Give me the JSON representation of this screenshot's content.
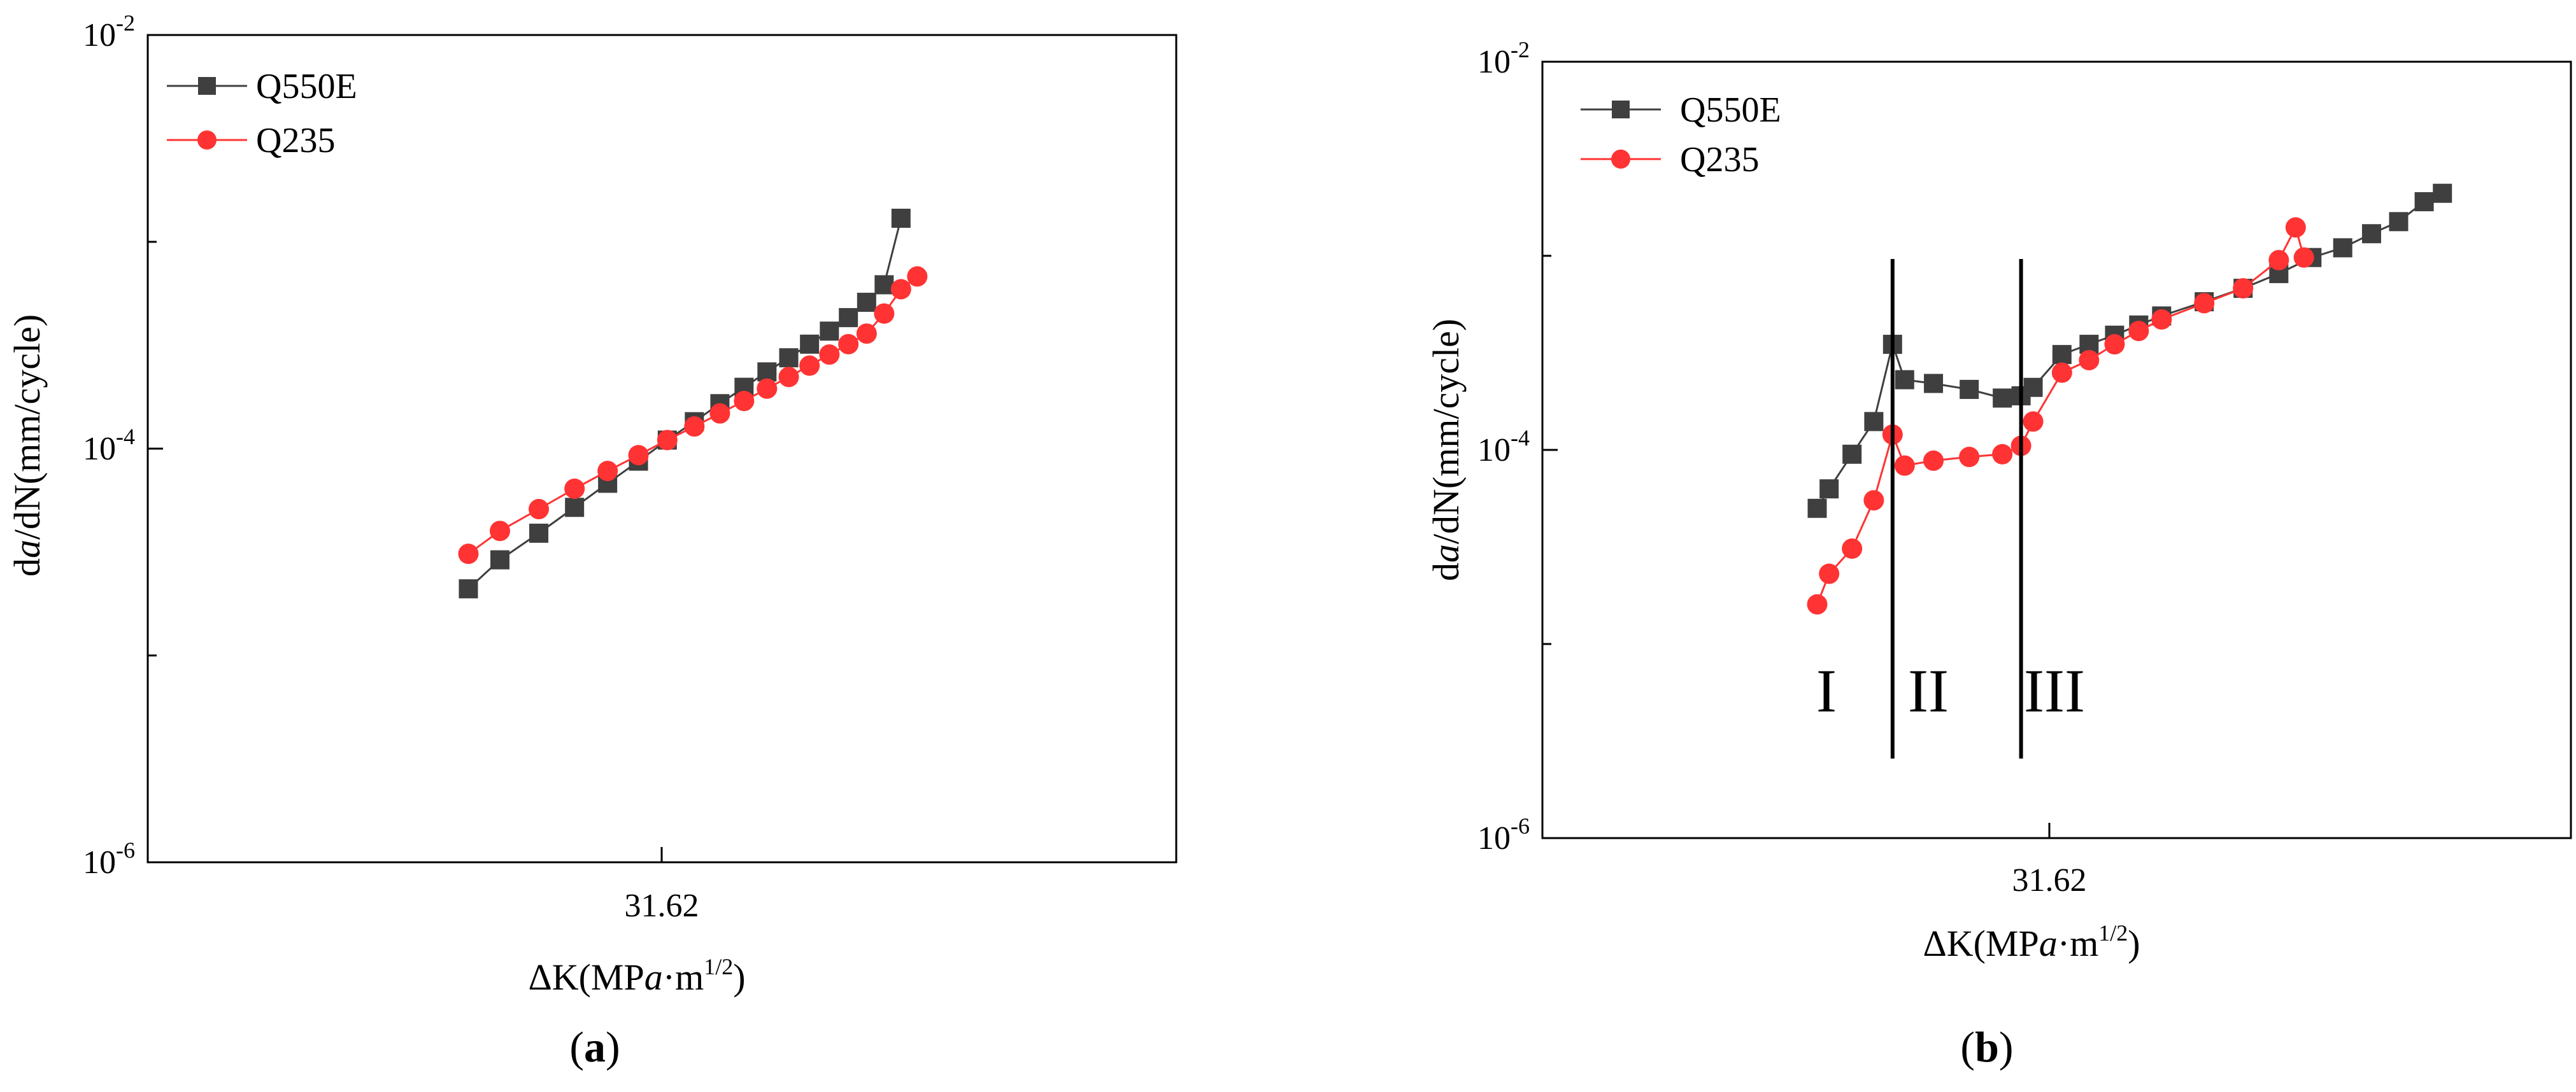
{
  "colors": {
    "Q550E": "#3f3f3f",
    "Q235": "#ff3333",
    "axis": "#000000",
    "background": "#ffffff"
  },
  "panels": [
    {
      "caption": {
        "open": "(",
        "letter": "a",
        "close": ")"
      },
      "y_ticks": [
        {
          "base": "10",
          "exp": "-2",
          "value": 0.01
        },
        {
          "base": "10",
          "exp": "-4",
          "value": 0.0001
        },
        {
          "base": "10",
          "exp": "-6",
          "value": 1e-06
        }
      ],
      "x_ticks": [
        {
          "label": "31.62",
          "value": 31.62
        }
      ],
      "ylabel": {
        "pre": "d",
        "italic": "a",
        "post": "/dN(mm/cycle)"
      },
      "xlabel": {
        "pre": "ΔK(MP",
        "italic": "a",
        "post": "·m",
        "sup": "1/2",
        "close": ")"
      },
      "legend": {
        "position": "top-left",
        "entries": [
          "Q550E",
          "Q235"
        ]
      }
    },
    {
      "caption": {
        "open": "(",
        "letter": "b",
        "close": ")"
      },
      "y_ticks": [
        {
          "base": "10",
          "exp": "-2",
          "value": 0.01
        },
        {
          "base": "10",
          "exp": "-4",
          "value": 0.0001
        },
        {
          "base": "10",
          "exp": "-6",
          "value": 1e-06
        }
      ],
      "x_ticks": [
        {
          "label": "31.62",
          "value": 31.62
        }
      ],
      "ylabel": {
        "pre": "d",
        "italic": "a",
        "post": "/dN(mm/cycle)"
      },
      "xlabel": {
        "pre": "ΔK(MP",
        "italic": "a",
        "post": "·m",
        "sup": "1/2",
        "close": ")"
      },
      "legend": {
        "position": "top-left",
        "entries": [
          "Q550E",
          "Q235"
        ]
      },
      "regions": [
        "I",
        "II",
        "III"
      ]
    }
  ],
  "chart_data": [
    {
      "type": "scatter",
      "x_scale": "log",
      "y_scale": "log",
      "xlim": [
        10,
        100
      ],
      "ylim": [
        1e-06,
        0.01
      ],
      "series": [
        {
          "name": "Q550E",
          "marker": "square",
          "x": [
            20.5,
            22,
            24,
            26,
            28,
            30,
            32,
            34,
            36,
            38,
            40,
            42,
            44,
            46,
            48,
            50,
            52,
            54
          ],
          "y": [
            2.1e-05,
            2.9e-05,
            3.9e-05,
            5.2e-05,
            6.8e-05,
            8.7e-05,
            0.00011,
            0.000135,
            0.000165,
            0.000198,
            0.000235,
            0.000275,
            0.00032,
            0.00037,
            0.00043,
            0.00051,
            0.00062,
            0.0013
          ]
        },
        {
          "name": "Q235",
          "marker": "circle",
          "x": [
            20.5,
            22,
            24,
            26,
            28,
            30,
            32,
            34,
            36,
            38,
            40,
            42,
            44,
            46,
            48,
            50,
            52,
            54,
            56
          ],
          "y": [
            3.1e-05,
            4e-05,
            5.1e-05,
            6.4e-05,
            7.8e-05,
            9.3e-05,
            0.00011,
            0.000128,
            0.000148,
            0.00017,
            0.000195,
            0.000222,
            0.000252,
            0.000285,
            0.00032,
            0.00036,
            0.00045,
            0.00059,
            0.00068
          ]
        }
      ]
    },
    {
      "type": "scatter",
      "x_scale": "log",
      "y_scale": "log",
      "xlim": [
        10,
        100
      ],
      "ylim": [
        1e-06,
        0.01
      ],
      "region_bounds_x": [
        21.9,
        29.2
      ],
      "series": [
        {
          "name": "Q550E",
          "marker": "square",
          "x": [
            18.5,
            19,
            20,
            21,
            21.9,
            22.5,
            24,
            26,
            28,
            29.2,
            30,
            32,
            34,
            36,
            38,
            40,
            44,
            48,
            52,
            56,
            60,
            64,
            68,
            72,
            75
          ],
          "y": [
            5e-05,
            6.3e-05,
            9.5e-05,
            0.00014,
            0.00035,
            0.00023,
            0.00022,
            0.000205,
            0.000185,
            0.00019,
            0.00021,
            0.00031,
            0.00035,
            0.00039,
            0.00044,
            0.00049,
            0.00058,
            0.00068,
            0.00081,
            0.00098,
            0.0011,
            0.0013,
            0.0015,
            0.0019,
            0.0021
          ]
        },
        {
          "name": "Q235",
          "marker": "circle",
          "x": [
            18.5,
            19,
            20,
            21,
            21.9,
            22.5,
            24,
            26,
            28,
            29.2,
            30,
            32,
            34,
            36,
            38,
            40,
            44,
            48,
            52,
            54,
            55
          ],
          "y": [
            1.6e-05,
            2.3e-05,
            3.1e-05,
            5.5e-05,
            0.00012,
            8.3e-05,
            8.8e-05,
            9.2e-05,
            9.5e-05,
            0.000105,
            0.00014,
            0.00025,
            0.00029,
            0.00035,
            0.00041,
            0.00047,
            0.00057,
            0.00068,
            0.00095,
            0.0014,
            0.00098
          ]
        }
      ]
    }
  ]
}
